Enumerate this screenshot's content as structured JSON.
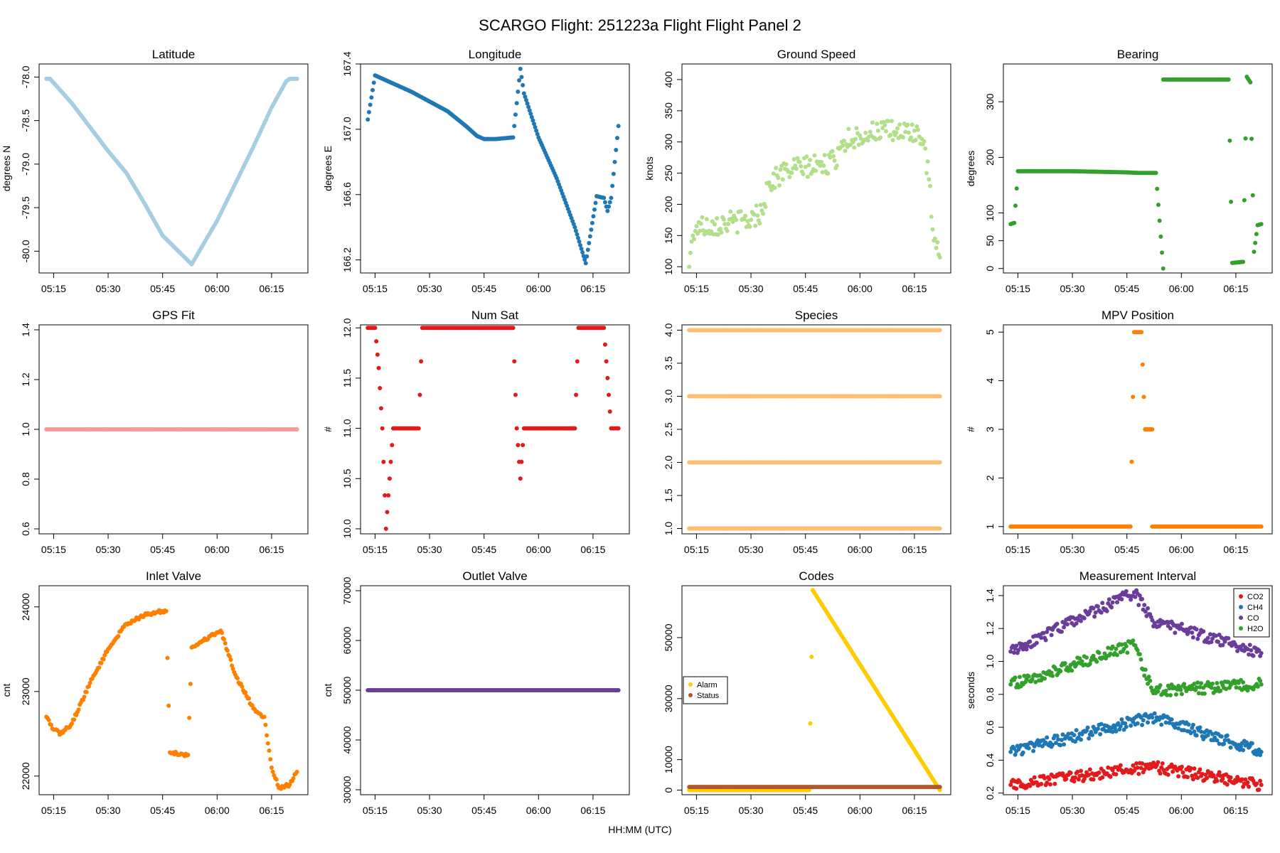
{
  "figure": {
    "title": "SCARGO Flight: 251223a  Flight Flight  Panel 2",
    "xlabel": "HH:MM (UTC)",
    "x_tick_labels": [
      "05:15",
      "05:30",
      "05:45",
      "06:00",
      "06:15"
    ]
  },
  "chart_data": [
    {
      "id": "latitude",
      "type": "scatter",
      "title": "Latitude",
      "ylabel": "degrees N",
      "x_unit": "HH:MM (UTC)",
      "xlim": [
        "05:11",
        "06:25"
      ],
      "ylim": [
        -80.25,
        -77.85
      ],
      "y_ticks": [
        -80.0,
        -79.5,
        -79.0,
        -78.5,
        -78.0
      ],
      "y_tick_labels": [
        "-80.0",
        "-79.5",
        "-79.0",
        "-78.5",
        "-78.0"
      ],
      "series": [
        {
          "color": "#a6cee3",
          "x": [
            "05:13",
            "05:14",
            "05:20",
            "05:30",
            "05:35",
            "05:40",
            "05:45",
            "05:53",
            "06:00",
            "06:10",
            "06:15",
            "06:19",
            "06:20",
            "06:22"
          ],
          "y": [
            -78.02,
            -78.02,
            -78.3,
            -78.85,
            -79.1,
            -79.45,
            -79.82,
            -80.15,
            -79.65,
            -78.8,
            -78.35,
            -78.05,
            -78.02,
            -78.02
          ]
        }
      ]
    },
    {
      "id": "longitude",
      "type": "scatter",
      "title": "Longitude",
      "ylabel": "degrees E",
      "x_unit": "HH:MM (UTC)",
      "xlim": [
        "05:11",
        "06:25"
      ],
      "ylim": [
        166.12,
        167.4
      ],
      "y_ticks": [
        166.2,
        166.6,
        167.0,
        167.4
      ],
      "y_tick_labels": [
        "166.2",
        "166.6",
        "167.0",
        "167.4"
      ],
      "series": [
        {
          "color": "#1f78b4",
          "x": [
            "05:13",
            "05:15",
            "05:20",
            "05:25",
            "05:30",
            "05:35",
            "05:40",
            "05:43",
            "05:45",
            "05:48",
            "05:53",
            "05:55",
            "05:56",
            "06:00",
            "06:05",
            "06:10",
            "06:13",
            "06:16",
            "06:18",
            "06:19",
            "06:20",
            "06:22"
          ],
          "y": [
            167.06,
            167.33,
            167.28,
            167.23,
            167.17,
            167.11,
            167.02,
            166.96,
            166.94,
            166.94,
            166.95,
            167.37,
            167.22,
            166.95,
            166.7,
            166.4,
            166.18,
            166.59,
            166.58,
            166.5,
            166.58,
            167.02
          ]
        }
      ]
    },
    {
      "id": "ground-speed",
      "type": "scatter",
      "title": "Ground Speed",
      "ylabel": "knots",
      "x_unit": "HH:MM (UTC)",
      "xlim": [
        "05:11",
        "06:25"
      ],
      "ylim": [
        90,
        425
      ],
      "y_ticks": [
        100,
        150,
        200,
        250,
        300,
        350,
        400
      ],
      "y_tick_labels": [
        "100",
        "150",
        "200",
        "250",
        "300",
        "350",
        "400"
      ],
      "series": [
        {
          "color": "#b2df8a",
          "x": [
            "05:13",
            "05:14",
            "05:15",
            "05:20",
            "05:25",
            "05:30",
            "05:33",
            "05:35",
            "05:40",
            "05:45",
            "05:50",
            "05:53",
            "05:55",
            "06:00",
            "06:05",
            "06:10",
            "06:15",
            "06:17",
            "06:19",
            "06:20",
            "06:21",
            "06:22"
          ],
          "y": [
            100,
            150,
            165,
            168,
            172,
            175,
            190,
            235,
            255,
            260,
            262,
            270,
            300,
            310,
            318,
            315,
            318,
            305,
            240,
            160,
            130,
            115
          ]
        }
      ]
    },
    {
      "id": "bearing",
      "type": "scatter",
      "title": "Bearing",
      "ylabel": "degrees",
      "x_unit": "HH:MM (UTC)",
      "xlim": [
        "05:11",
        "06:25"
      ],
      "ylim": [
        -8,
        368
      ],
      "y_ticks": [
        0,
        50,
        100,
        200,
        300
      ],
      "y_tick_labels": [
        "0",
        "50",
        "100",
        "200",
        "300"
      ],
      "series": [
        {
          "color": "#33a02c",
          "x": [
            "05:13",
            "05:14",
            "05:15",
            "05:30",
            "05:45",
            "05:48",
            "05:53",
            "05:55",
            "05:55",
            "06:05",
            "06:13",
            "06:14",
            "06:17",
            "06:18",
            "06:19",
            "06:20",
            "06:21",
            "06:22"
          ],
          "y": [
            80,
            82,
            175,
            175,
            173,
            172,
            172,
            0,
            340,
            340,
            340,
            10,
            12,
            345,
            335,
            30,
            78,
            80
          ]
        }
      ]
    },
    {
      "id": "gps-fit",
      "type": "scatter",
      "title": "GPS Fit",
      "ylabel": "",
      "x_unit": "HH:MM (UTC)",
      "xlim": [
        "05:11",
        "06:25"
      ],
      "ylim": [
        0.58,
        1.42
      ],
      "y_ticks": [
        0.6,
        0.8,
        1.0,
        1.2,
        1.4
      ],
      "y_tick_labels": [
        "0.6",
        "0.8",
        "1.0",
        "1.2",
        "1.4"
      ],
      "series": [
        {
          "color": "#fb9a99",
          "x": [
            "05:13",
            "06:22"
          ],
          "y": [
            1.0,
            1.0
          ]
        }
      ]
    },
    {
      "id": "num-sat",
      "type": "scatter",
      "title": "Num Sat",
      "ylabel": "#",
      "x_unit": "HH:MM (UTC)",
      "xlim": [
        "05:11",
        "06:25"
      ],
      "ylim": [
        9.95,
        12.03
      ],
      "y_ticks": [
        10.0,
        10.5,
        11.0,
        11.5,
        12.0
      ],
      "y_tick_labels": [
        "10.0",
        "10.5",
        "11.0",
        "11.5",
        "12.0"
      ],
      "series": [
        {
          "color": "#e31a1c",
          "x": [
            "05:13",
            "05:15",
            "05:16",
            "05:17",
            "05:18",
            "05:20",
            "05:25",
            "05:27",
            "05:28",
            "05:35",
            "05:45",
            "05:53",
            "05:54",
            "05:55",
            "05:56",
            "06:00",
            "06:05",
            "06:10",
            "06:11",
            "06:15",
            "06:18",
            "06:19",
            "06:20",
            "06:21",
            "06:22"
          ],
          "y": [
            12,
            12,
            11.6,
            11,
            10,
            11,
            11,
            11,
            12,
            12,
            12,
            12,
            11,
            10.5,
            11,
            11,
            11,
            11,
            12,
            12,
            12,
            11.5,
            11,
            11,
            11
          ]
        }
      ]
    },
    {
      "id": "species",
      "type": "scatter",
      "title": "Species",
      "ylabel": "",
      "x_unit": "HH:MM (UTC)",
      "xlim": [
        "05:11",
        "06:25"
      ],
      "ylim": [
        0.92,
        4.08
      ],
      "y_ticks": [
        1.0,
        1.5,
        2.0,
        2.5,
        3.0,
        3.5,
        4.0
      ],
      "y_tick_labels": [
        "1.0",
        "1.5",
        "2.0",
        "2.5",
        "3.0",
        "3.5",
        "4.0"
      ],
      "series": [
        {
          "color": "#fdbf6f",
          "x": [
            "05:13",
            "06:22"
          ],
          "y": [
            1.0,
            1.0
          ]
        },
        {
          "color": "#fdbf6f",
          "x": [
            "05:13",
            "06:22"
          ],
          "y": [
            2.0,
            2.0
          ]
        },
        {
          "color": "#fdbf6f",
          "x": [
            "05:13",
            "06:22"
          ],
          "y": [
            3.0,
            3.0
          ]
        },
        {
          "color": "#fdbf6f",
          "x": [
            "05:13",
            "06:22"
          ],
          "y": [
            4.0,
            4.0
          ]
        }
      ]
    },
    {
      "id": "mpv-position",
      "type": "scatter",
      "title": "MPV Position",
      "ylabel": "#",
      "x_unit": "HH:MM (UTC)",
      "xlim": [
        "05:11",
        "06:25"
      ],
      "ylim": [
        0.85,
        5.15
      ],
      "y_ticks": [
        1,
        2,
        3,
        4,
        5
      ],
      "y_tick_labels": [
        "1",
        "2",
        "3",
        "4",
        "5"
      ],
      "series": [
        {
          "color": "#ff7f00",
          "x": [
            "05:13",
            "05:46",
            "05:47",
            "05:49",
            "05:50",
            "05:52",
            "05:52",
            "06:22"
          ],
          "y": [
            1,
            1,
            5,
            5,
            3,
            3,
            1,
            1
          ]
        }
      ]
    },
    {
      "id": "inlet-valve",
      "type": "scatter",
      "title": "Inlet Valve",
      "ylabel": "cnt",
      "x_unit": "HH:MM (UTC)",
      "xlim": [
        "05:11",
        "06:25"
      ],
      "ylim": [
        21780,
        24250
      ],
      "y_ticks": [
        22000,
        23000,
        24000
      ],
      "y_tick_labels": [
        "22000",
        "23000",
        "24000"
      ],
      "series": [
        {
          "color": "#ff7f00",
          "x": [
            "05:13",
            "05:15",
            "05:17",
            "05:20",
            "05:25",
            "05:30",
            "05:35",
            "05:40",
            "05:45",
            "05:46",
            "05:47",
            "05:52",
            "05:53",
            "05:55",
            "06:00",
            "06:01",
            "06:05",
            "06:10",
            "06:12",
            "06:13",
            "06:15",
            "06:17",
            "06:20",
            "06:22"
          ],
          "y": [
            22700,
            22550,
            22500,
            22620,
            23100,
            23500,
            23800,
            23900,
            23950,
            23950,
            22280,
            22250,
            23520,
            23570,
            23700,
            23720,
            23200,
            22800,
            22730,
            22700,
            22100,
            21860,
            21900,
            22050
          ]
        }
      ]
    },
    {
      "id": "outlet-valve",
      "type": "scatter",
      "title": "Outlet Valve",
      "ylabel": "cnt",
      "x_unit": "HH:MM (UTC)",
      "xlim": [
        "05:11",
        "06:25"
      ],
      "ylim": [
        29000,
        71000
      ],
      "y_ticks": [
        30000,
        40000,
        50000,
        60000,
        70000
      ],
      "y_tick_labels": [
        "30000",
        "40000",
        "50000",
        "60000",
        "70000"
      ],
      "series": [
        {
          "color": "#6a3d9a",
          "x": [
            "05:13",
            "06:22"
          ],
          "y": [
            50000,
            50000
          ]
        }
      ]
    },
    {
      "id": "codes",
      "type": "scatter",
      "title": "Codes",
      "ylabel": "",
      "x_unit": "HH:MM (UTC)",
      "xlim": [
        "05:11",
        "06:25"
      ],
      "ylim": [
        -1500,
        67000
      ],
      "y_ticks": [
        0,
        10000,
        30000,
        50000
      ],
      "y_tick_labels": [
        "0",
        "10000",
        "30000",
        "50000"
      ],
      "legend": {
        "position": "left",
        "entries": [
          "Alarm",
          "Status"
        ]
      },
      "series": [
        {
          "name": "Alarm",
          "color": "#ffcc00",
          "x": [
            "05:13",
            "05:46",
            "05:47",
            "06:22"
          ],
          "y": [
            0,
            0,
            65535,
            0
          ]
        },
        {
          "name": "Status",
          "color": "#b15928",
          "x": [
            "05:13",
            "06:22"
          ],
          "y": [
            1024,
            1024
          ]
        }
      ]
    },
    {
      "id": "measurement-interval",
      "type": "scatter",
      "title": "Measurement Interval",
      "ylabel": "seconds",
      "x_unit": "HH:MM (UTC)",
      "xlim": [
        "05:11",
        "06:25"
      ],
      "ylim": [
        0.19,
        1.46
      ],
      "y_ticks": [
        0.2,
        0.4,
        0.6,
        0.8,
        1.0,
        1.2,
        1.4
      ],
      "y_tick_labels": [
        "0.2",
        "0.4",
        "0.6",
        "0.8",
        "1.0",
        "1.2",
        "1.4"
      ],
      "legend": {
        "position": "top-right",
        "entries": [
          "CO2",
          "CH4",
          "CO",
          "H2O"
        ]
      },
      "series": [
        {
          "name": "CO2",
          "color": "#e31a1c",
          "x": [
            "05:13",
            "05:52",
            "06:22"
          ],
          "y": [
            0.25,
            0.36,
            0.25
          ]
        },
        {
          "name": "CH4",
          "color": "#1f78b4",
          "x": [
            "05:13",
            "05:52",
            "06:22"
          ],
          "y": [
            0.45,
            0.66,
            0.45
          ]
        },
        {
          "name": "CO",
          "color": "#6a3d9a",
          "x": [
            "05:13",
            "05:47",
            "05:52",
            "06:22"
          ],
          "y": [
            1.06,
            1.42,
            1.25,
            1.05
          ]
        },
        {
          "name": "H2O",
          "color": "#33a02c",
          "x": [
            "05:13",
            "05:47",
            "05:52",
            "06:22"
          ],
          "y": [
            0.86,
            1.1,
            0.82,
            0.86
          ]
        }
      ]
    }
  ]
}
